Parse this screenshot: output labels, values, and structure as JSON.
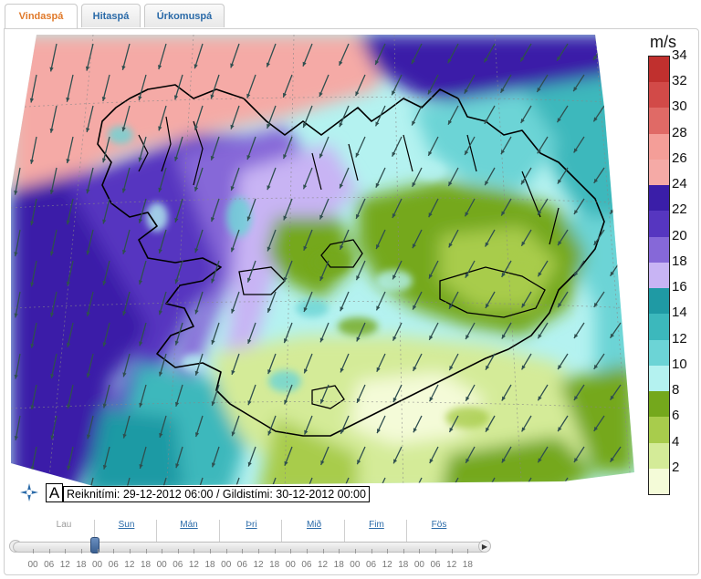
{
  "tabs": [
    {
      "label": "Vindaspá",
      "active": true
    },
    {
      "label": "Hitaspá",
      "active": false
    },
    {
      "label": "Úrkomuspá",
      "active": false
    }
  ],
  "legend": {
    "unit": "m/s",
    "ticks": [
      "34",
      "32",
      "30",
      "28",
      "26",
      "24",
      "22",
      "20",
      "18",
      "16",
      "14",
      "12",
      "10",
      "8",
      "6",
      "4",
      "2"
    ],
    "colors": [
      "#c0302e",
      "#d24a48",
      "#e06a66",
      "#f49e98",
      "#f5aaa6",
      "#3a1ea8",
      "#5636c0",
      "#8668d8",
      "#c8b4f4",
      "#1f9aa4",
      "#3cb8bc",
      "#6cd4d6",
      "#b4f2f0",
      "#74a81c",
      "#a8cc4c",
      "#d4eb98",
      "#f4fbd8"
    ]
  },
  "map": {
    "letter": "A",
    "time_text": "Reiknitími: 29-12-2012 06:00 / Gildistími: 30-12-2012 00:00"
  },
  "timeline": {
    "days": [
      "Lau",
      "Sun",
      "Mán",
      "Þri",
      "Mið",
      "Fim",
      "Fös"
    ],
    "hours": [
      "00",
      "06",
      "12",
      "18",
      "00",
      "06",
      "12",
      "18",
      "00",
      "06",
      "12",
      "18",
      "00",
      "06",
      "12",
      "18",
      "00",
      "06",
      "12",
      "18",
      "00",
      "06",
      "12",
      "18",
      "00",
      "06",
      "12",
      "18"
    ],
    "prev_icon": "left-arrow-icon",
    "next_icon": "right-arrow-icon"
  }
}
